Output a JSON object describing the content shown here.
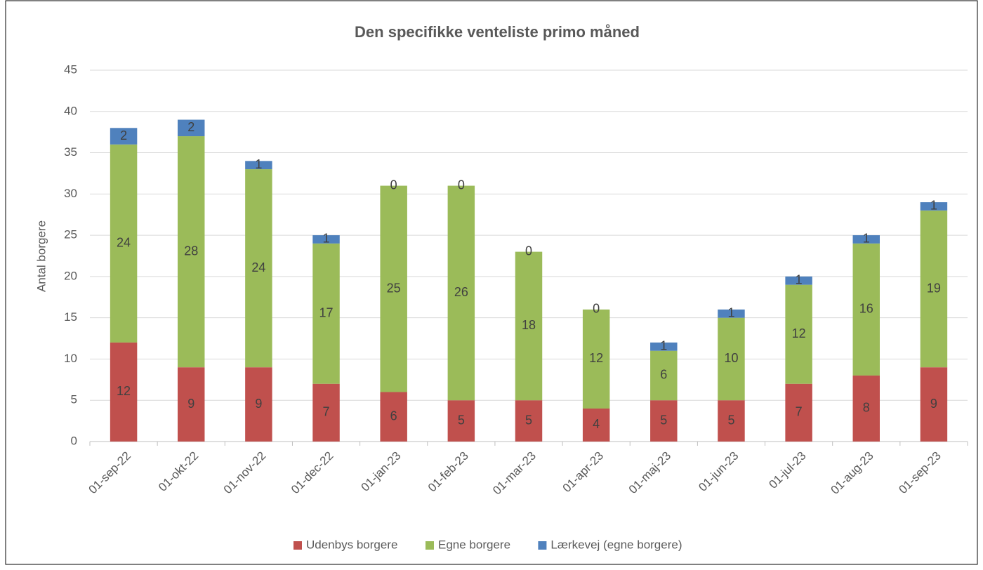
{
  "chart_data": {
    "type": "stacked_bar",
    "title": "Den specifikke venteliste primo måned",
    "y_label": "Antal borgere",
    "categories": [
      "01-sep-22",
      "01-okt-22",
      "01-nov-22",
      "01-dec-22",
      "01-jan-23",
      "01-feb-23",
      "01-mar-23",
      "01-apr-23",
      "01-maj-23",
      "01-jun-23",
      "01-jul-23",
      "01-aug-23",
      "01-sep-23"
    ],
    "series": [
      {
        "name": "Udenbys borgere",
        "color": "#c0504d",
        "values": [
          12,
          9,
          9,
          7,
          6,
          5,
          5,
          4,
          5,
          5,
          7,
          8,
          9
        ]
      },
      {
        "name": "Egne borgere",
        "color": "#9bbb59",
        "values": [
          24,
          28,
          24,
          17,
          25,
          26,
          18,
          12,
          6,
          10,
          12,
          16,
          19
        ]
      },
      {
        "name": "Lærkevej (egne borgere)",
        "color": "#4f81bd",
        "values": [
          2,
          2,
          1,
          1,
          0,
          0,
          0,
          0,
          1,
          1,
          1,
          1,
          1
        ]
      }
    ],
    "ylim": [
      0,
      45
    ],
    "yticks": [
      0,
      5,
      10,
      15,
      20,
      25,
      30,
      35,
      40,
      45
    ],
    "grid": true,
    "legend": "bottom"
  }
}
